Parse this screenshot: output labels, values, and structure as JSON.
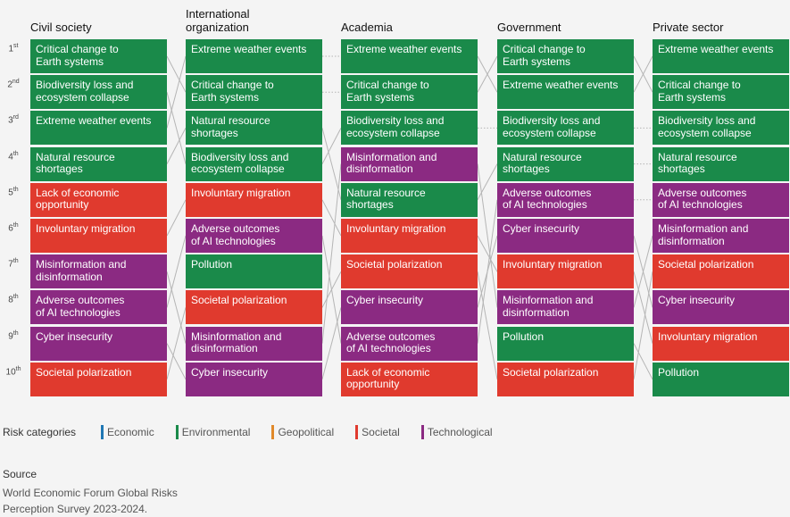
{
  "colors": {
    "Economic": "#1f77b4",
    "Environmental": "#1a8a4a",
    "Geopolitical": "#e0892a",
    "Societal": "#e03a2e",
    "Technological": "#8b2a82"
  },
  "ranks": [
    "1st",
    "2nd",
    "3rd",
    "4th",
    "5th",
    "6th",
    "7th",
    "8th",
    "9th",
    "10th"
  ],
  "columns": [
    {
      "title": "Civil society",
      "items": [
        {
          "label": "Critical change to\nEarth systems",
          "cat": "Environmental"
        },
        {
          "label": "Biodiversity loss and\necosystem collapse",
          "cat": "Environmental"
        },
        {
          "label": "Extreme weather events",
          "cat": "Environmental"
        },
        {
          "label": "Natural resource shortages",
          "cat": "Environmental"
        },
        {
          "label": "Lack of economic\nopportunity",
          "cat": "Societal"
        },
        {
          "label": "Involuntary migration",
          "cat": "Societal"
        },
        {
          "label": "Misinformation and\ndisinformation",
          "cat": "Technological"
        },
        {
          "label": "Adverse outcomes\nof AI technologies",
          "cat": "Technological"
        },
        {
          "label": "Cyber insecurity",
          "cat": "Technological"
        },
        {
          "label": "Societal polarization",
          "cat": "Societal"
        }
      ]
    },
    {
      "title": "International\norganization",
      "items": [
        {
          "label": "Extreme weather events",
          "cat": "Environmental"
        },
        {
          "label": "Critical change to\nEarth systems",
          "cat": "Environmental"
        },
        {
          "label": "Natural resource shortages",
          "cat": "Environmental"
        },
        {
          "label": "Biodiversity loss and\necosystem collapse",
          "cat": "Environmental"
        },
        {
          "label": "Involuntary migration",
          "cat": "Societal"
        },
        {
          "label": "Adverse outcomes\nof AI technologies",
          "cat": "Technological"
        },
        {
          "label": "Pollution",
          "cat": "Environmental"
        },
        {
          "label": "Societal polarization",
          "cat": "Societal"
        },
        {
          "label": "Misinformation and\ndisinformation",
          "cat": "Technological"
        },
        {
          "label": "Cyber insecurity",
          "cat": "Technological"
        }
      ]
    },
    {
      "title": "Academia",
      "items": [
        {
          "label": "Extreme weather events",
          "cat": "Environmental"
        },
        {
          "label": "Critical change to\nEarth systems",
          "cat": "Environmental"
        },
        {
          "label": "Biodiversity loss and\necosystem collapse",
          "cat": "Environmental"
        },
        {
          "label": "Misinformation and\ndisinformation",
          "cat": "Technological"
        },
        {
          "label": "Natural resource shortages",
          "cat": "Environmental"
        },
        {
          "label": "Involuntary migration",
          "cat": "Societal"
        },
        {
          "label": "Societal polarization",
          "cat": "Societal"
        },
        {
          "label": "Cyber insecurity",
          "cat": "Technological"
        },
        {
          "label": "Adverse outcomes\nof AI technologies",
          "cat": "Technological"
        },
        {
          "label": "Lack of economic\nopportunity",
          "cat": "Societal"
        }
      ]
    },
    {
      "title": "Government",
      "items": [
        {
          "label": "Critical change to\nEarth systems",
          "cat": "Environmental"
        },
        {
          "label": "Extreme weather events",
          "cat": "Environmental"
        },
        {
          "label": "Biodiversity loss and\necosystem collapse",
          "cat": "Environmental"
        },
        {
          "label": "Natural resource shortages",
          "cat": "Environmental"
        },
        {
          "label": "Adverse outcomes\nof AI technologies",
          "cat": "Technological"
        },
        {
          "label": "Cyber insecurity",
          "cat": "Technological"
        },
        {
          "label": "Involuntary migration",
          "cat": "Societal"
        },
        {
          "label": "Misinformation and\ndisinformation",
          "cat": "Technological"
        },
        {
          "label": "Pollution",
          "cat": "Environmental"
        },
        {
          "label": "Societal polarization",
          "cat": "Societal"
        }
      ]
    },
    {
      "title": "Private sector",
      "items": [
        {
          "label": "Extreme weather events",
          "cat": "Environmental"
        },
        {
          "label": "Critical change to\nEarth systems",
          "cat": "Environmental"
        },
        {
          "label": "Biodiversity loss and\necosystem collapse",
          "cat": "Environmental"
        },
        {
          "label": "Natural resource shortages",
          "cat": "Environmental"
        },
        {
          "label": "Adverse outcomes\nof AI technologies",
          "cat": "Technological"
        },
        {
          "label": "Misinformation and\ndisinformation",
          "cat": "Technological"
        },
        {
          "label": "Societal polarization",
          "cat": "Societal"
        },
        {
          "label": "Cyber insecurity",
          "cat": "Technological"
        },
        {
          "label": "Involuntary migration",
          "cat": "Societal"
        },
        {
          "label": "Pollution",
          "cat": "Environmental"
        }
      ]
    }
  ],
  "legend": {
    "title": "Risk categories",
    "items": [
      "Economic",
      "Environmental",
      "Geopolitical",
      "Societal",
      "Technological"
    ]
  },
  "source": {
    "title": "Source",
    "text": "World Economic Forum Global Risks Perception Survey 2023-2024."
  }
}
